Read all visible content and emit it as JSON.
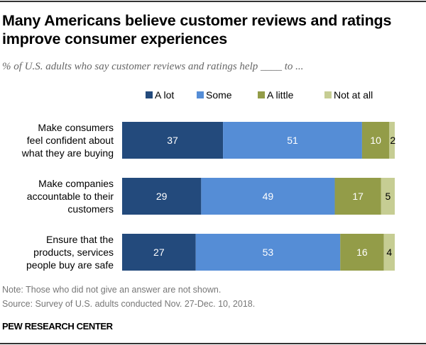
{
  "header": {
    "title": "Many Americans believe customer reviews and ratings improve consumer experiences",
    "subtitle": "% of U.S. adults who say customer reviews and ratings help ____ to ..."
  },
  "chart_data": {
    "type": "bar",
    "orientation": "horizontal",
    "stacked": true,
    "title": "Many Americans believe customer reviews and ratings improve consumer experiences",
    "subtitle": "% of U.S. adults who say customer reviews and ratings help ____ to ...",
    "xlabel": "",
    "ylabel": "",
    "xlim": [
      0,
      100
    ],
    "grid": false,
    "legend_position": "top",
    "categories": [
      "Make consumers feel confident about what they are buying",
      "Make companies accountable to their customers",
      "Ensure that the products, services people buy are safe"
    ],
    "category_lines": [
      [
        "Make consumers",
        "feel confident about",
        "what they are buying"
      ],
      [
        "Make companies",
        "accountable to their",
        "customers"
      ],
      [
        "Ensure that the",
        "products, services",
        "people buy are safe"
      ]
    ],
    "series": [
      {
        "name": "A lot",
        "color": "#234a7c",
        "label_color": "#ffffff",
        "values": [
          37,
          29,
          27
        ]
      },
      {
        "name": "Some",
        "color": "#558dd6",
        "label_color": "#ffffff",
        "values": [
          51,
          49,
          53
        ]
      },
      {
        "name": "A little",
        "color": "#939c48",
        "label_color": "#ffffff",
        "values": [
          10,
          17,
          16
        ]
      },
      {
        "name": "Not at all",
        "color": "#c6cd93",
        "label_color": "#000000",
        "values": [
          2,
          5,
          4
        ]
      }
    ]
  },
  "footer": {
    "note": "Note: Those who did not give an answer are not shown.",
    "source": "Source: Survey of U.S. adults conducted Nov. 27-Dec. 10, 2018.",
    "brand": "PEW RESEARCH CENTER"
  }
}
